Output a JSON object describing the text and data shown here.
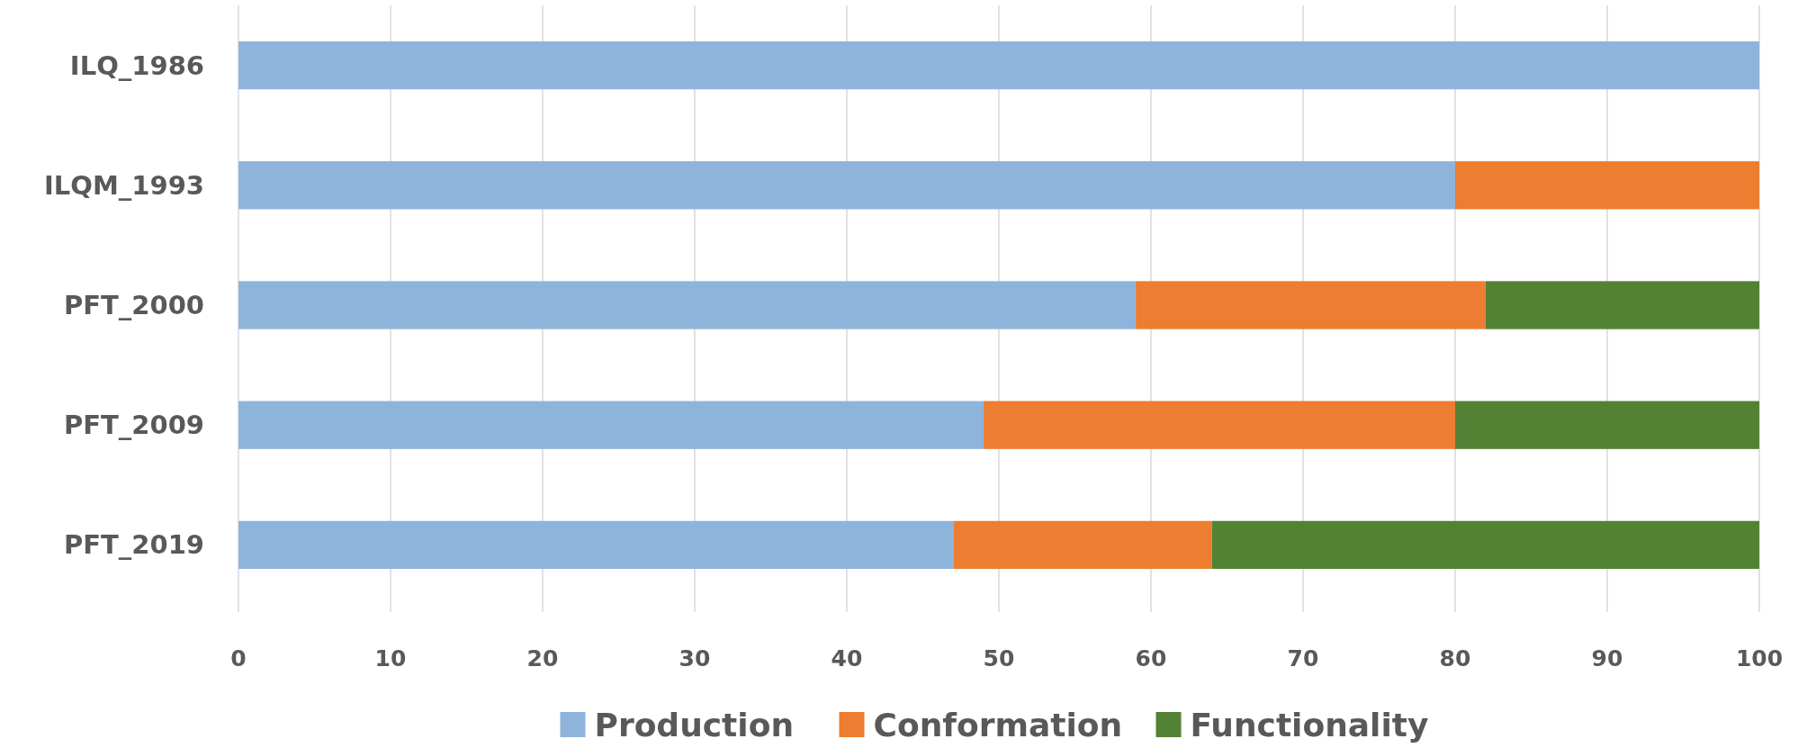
{
  "chart_data": {
    "type": "bar",
    "orientation": "horizontal",
    "stacked": true,
    "categories": [
      "ILQ_1986",
      "ILQM_1993",
      "PFT_2000",
      "PFT_2009",
      "PFT_2019"
    ],
    "series": [
      {
        "name": "Production",
        "color": "#8eb4dc",
        "values": [
          100,
          80,
          59,
          49,
          47
        ]
      },
      {
        "name": "Conformation",
        "color": "#ed7d31",
        "values": [
          0,
          20,
          23,
          31,
          17
        ]
      },
      {
        "name": "Functionality",
        "color": "#548235",
        "values": [
          0,
          0,
          18,
          20,
          36
        ]
      }
    ],
    "xlim": [
      0,
      100
    ],
    "xticks": [
      0,
      10,
      20,
      30,
      40,
      50,
      60,
      70,
      80,
      90,
      100
    ],
    "grid": "x",
    "legend": "bottom"
  }
}
